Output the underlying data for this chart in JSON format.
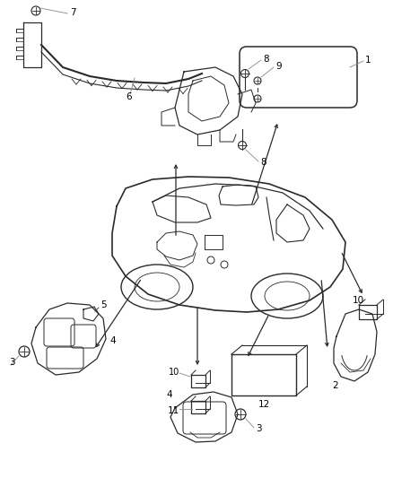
{
  "bg_color": "#ffffff",
  "line_color": "#2a2a2a",
  "label_color": "#000000",
  "fig_width": 4.38,
  "fig_height": 5.33,
  "dpi": 100
}
